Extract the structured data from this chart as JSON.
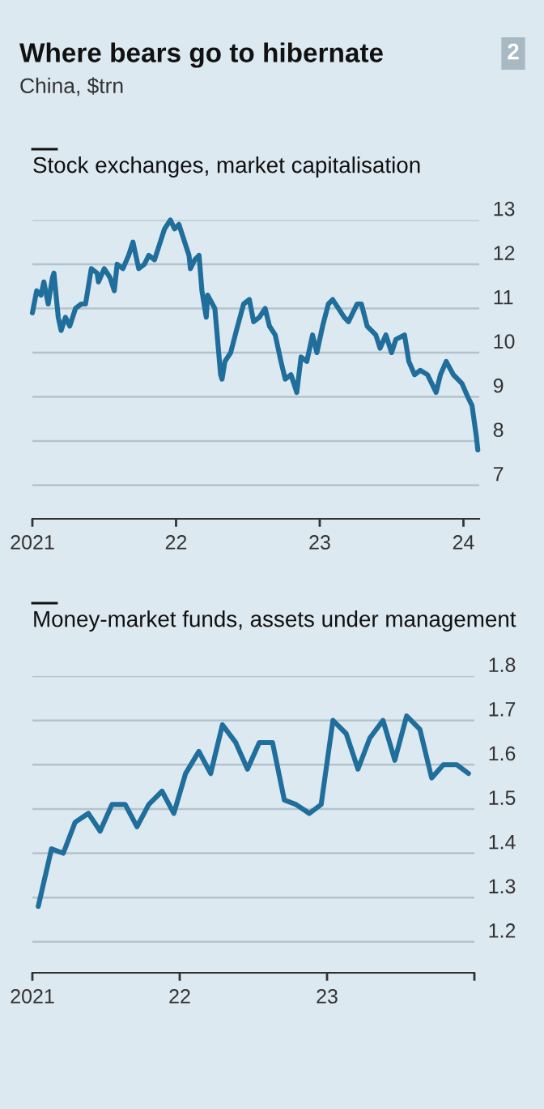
{
  "chart_data": [
    {
      "type": "line",
      "title": "Stock exchanges, market capitalisation",
      "annotations": [
        "Where bears go to hibernate",
        "China, $trn",
        "2"
      ],
      "x": [
        2021.0,
        2021.03,
        2021.06,
        2021.08,
        2021.11,
        2021.14,
        2021.15,
        2021.18,
        2021.2,
        2021.23,
        2021.26,
        2021.3,
        2021.34,
        2021.37,
        2021.41,
        2021.45,
        2021.46,
        2021.5,
        2021.54,
        2021.57,
        2021.59,
        2021.63,
        2021.67,
        2021.7,
        2021.74,
        2021.78,
        2021.81,
        2021.85,
        2021.89,
        2021.92,
        2021.96,
        2021.99,
        2022.02,
        2022.05,
        2022.09,
        2022.1,
        2022.13,
        2022.16,
        2022.18,
        2022.21,
        2022.22,
        2022.27,
        2022.31,
        2022.32,
        2022.34,
        2022.38,
        2022.42,
        2022.47,
        2022.51,
        2022.54,
        2022.58,
        2022.62,
        2022.65,
        2022.69,
        2022.73,
        2022.76,
        2022.8,
        2022.84,
        2022.87,
        2022.91,
        2022.95,
        2022.98,
        2023.02,
        2023.06,
        2023.09,
        2023.13,
        2023.17,
        2023.2,
        2023.26,
        2023.29,
        2023.33,
        2023.39,
        2023.42,
        2023.46,
        2023.5,
        2023.53,
        2023.59,
        2023.62,
        2023.66,
        2023.7,
        2023.75,
        2023.81,
        2023.84,
        2023.88,
        2023.93,
        2023.99,
        2024.03,
        2024.06,
        2024.09,
        2024.1
      ],
      "series": [
        {
          "color": "#1f6e9c",
          "values": [
            10.9,
            11.4,
            11.3,
            11.6,
            11.1,
            11.7,
            11.8,
            10.8,
            10.5,
            10.8,
            10.6,
            11.0,
            11.1,
            11.1,
            11.9,
            11.8,
            11.6,
            11.9,
            11.7,
            11.4,
            12.0,
            11.9,
            12.2,
            12.5,
            11.9,
            12.0,
            12.2,
            12.1,
            12.5,
            12.8,
            13.0,
            12.8,
            12.9,
            12.6,
            12.2,
            11.9,
            12.1,
            12.2,
            11.4,
            10.8,
            11.3,
            11.0,
            9.5,
            9.4,
            9.8,
            10.0,
            10.5,
            11.1,
            11.2,
            10.7,
            10.8,
            11.0,
            10.6,
            10.4,
            9.8,
            9.4,
            9.5,
            9.1,
            9.9,
            9.8,
            10.4,
            10.0,
            10.6,
            11.1,
            11.2,
            11.0,
            10.8,
            10.7,
            11.1,
            11.1,
            10.6,
            10.4,
            10.1,
            10.4,
            10.0,
            10.3,
            10.4,
            9.8,
            9.5,
            9.6,
            9.5,
            9.1,
            9.5,
            9.8,
            9.5,
            9.3,
            9.0,
            8.8,
            8.1,
            7.8
          ]
        }
      ],
      "xlim": [
        2021,
        2024.11
      ],
      "ylim": [
        6.24,
        13
      ],
      "xticks": [
        2021,
        {
          "value": 2022,
          "label": "22"
        },
        {
          "value": 2023,
          "label": "23"
        },
        {
          "value": 2024,
          "label": "24"
        }
      ],
      "yticks": [
        7,
        8,
        9,
        10,
        11,
        12,
        13
      ],
      "grid": "y",
      "line_style": "solid",
      "marker": "none"
    },
    {
      "type": "line",
      "title": "Money-market funds, assets under management",
      "x": [
        2021.04,
        2021.13,
        2021.21,
        2021.29,
        2021.38,
        2021.46,
        2021.54,
        2021.63,
        2021.71,
        2021.79,
        2021.88,
        2021.96,
        2022.04,
        2022.13,
        2022.21,
        2022.29,
        2022.38,
        2022.46,
        2022.54,
        2022.63,
        2022.71,
        2022.79,
        2022.88,
        2022.96,
        2023.04,
        2023.13,
        2023.21,
        2023.29,
        2023.38,
        2023.46,
        2023.54,
        2023.63,
        2023.71,
        2023.79,
        2023.88,
        2023.96
      ],
      "series": [
        {
          "color": "#1f6e9c",
          "values": [
            1.28,
            1.41,
            1.4,
            1.47,
            1.49,
            1.45,
            1.51,
            1.51,
            1.46,
            1.51,
            1.54,
            1.49,
            1.58,
            1.63,
            1.58,
            1.69,
            1.65,
            1.59,
            1.65,
            1.65,
            1.52,
            1.51,
            1.49,
            1.51,
            1.7,
            1.67,
            1.59,
            1.66,
            1.7,
            1.61,
            1.71,
            1.68,
            1.57,
            1.6,
            1.6,
            1.58
          ]
        }
      ],
      "xlim": [
        2021,
        2024
      ],
      "ylim": [
        1.13,
        1.8
      ],
      "xticks": [
        2021,
        {
          "value": 2022,
          "label": "22"
        },
        {
          "value": 2023,
          "label": "23"
        },
        {
          "value": 2024,
          "label": null
        }
      ],
      "yticks": [
        1.2,
        1.3,
        1.4,
        1.5,
        1.6,
        1.7,
        1.8
      ],
      "grid": "y",
      "line_style": "solid",
      "marker": "none"
    }
  ]
}
